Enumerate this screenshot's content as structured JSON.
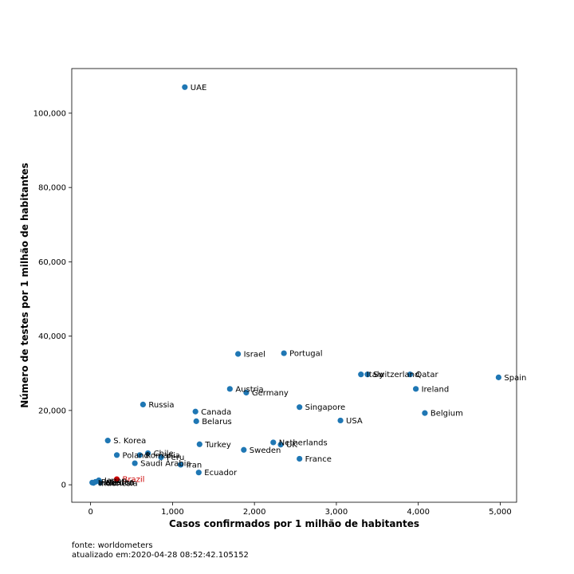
{
  "chart_data": {
    "type": "scatter",
    "xlabel": "Casos confirmados por 1 milhão de habitantes",
    "ylabel": "Número de testes por 1 milhão de habitantes",
    "xlim": [
      -230,
      5200
    ],
    "ylim": [
      -4700,
      112000
    ],
    "x_ticks": [
      0,
      1000,
      2000,
      3000,
      4000,
      5000
    ],
    "x_tick_labels": [
      "0",
      "1,000",
      "2,000",
      "3,000",
      "4,000",
      "5,000"
    ],
    "y_ticks": [
      0,
      20000,
      40000,
      60000,
      80000,
      100000
    ],
    "y_tick_labels": [
      "0",
      "20,000",
      "40,000",
      "60,000",
      "80,000",
      "100,000"
    ],
    "point_color": "#1f77b4",
    "highlight_color": "#cc0000",
    "grid": false,
    "points": [
      {
        "label": "UAE",
        "x": 1150,
        "y": 107000
      },
      {
        "label": "Israel",
        "x": 1800,
        "y": 35200
      },
      {
        "label": "Portugal",
        "x": 2360,
        "y": 35400
      },
      {
        "label": "Italy",
        "x": 3300,
        "y": 29700
      },
      {
        "label": "Switzerland",
        "x": 3380,
        "y": 29700
      },
      {
        "label": "Qatar",
        "x": 3900,
        "y": 29700
      },
      {
        "label": "Spain",
        "x": 4980,
        "y": 28900
      },
      {
        "label": "Ireland",
        "x": 3970,
        "y": 25800
      },
      {
        "label": "Austria",
        "x": 1700,
        "y": 25800
      },
      {
        "label": "Germany",
        "x": 1900,
        "y": 24800
      },
      {
        "label": "Russia",
        "x": 640,
        "y": 21600
      },
      {
        "label": "Singapore",
        "x": 2550,
        "y": 20900
      },
      {
        "label": "Canada",
        "x": 1280,
        "y": 19700
      },
      {
        "label": "Belgium",
        "x": 4080,
        "y": 19300
      },
      {
        "label": "Belarus",
        "x": 1290,
        "y": 17100
      },
      {
        "label": "USA",
        "x": 3050,
        "y": 17300
      },
      {
        "label": "S. Korea",
        "x": 210,
        "y": 11900
      },
      {
        "label": "Netherlands",
        "x": 2230,
        "y": 11400
      },
      {
        "label": "UK",
        "x": 2320,
        "y": 10800
      },
      {
        "label": "Turkey",
        "x": 1330,
        "y": 10900
      },
      {
        "label": "Sweden",
        "x": 1870,
        "y": 9400
      },
      {
        "label": "Chile",
        "x": 700,
        "y": 8500
      },
      {
        "label": "Poland",
        "x": 320,
        "y": 8000
      },
      {
        "label": "Romania",
        "x": 600,
        "y": 8000
      },
      {
        "label": "Peru",
        "x": 860,
        "y": 7400
      },
      {
        "label": "France",
        "x": 2550,
        "y": 7000
      },
      {
        "label": "Saudi Arabia",
        "x": 540,
        "y": 5800
      },
      {
        "label": "Iran",
        "x": 1100,
        "y": 5400
      },
      {
        "label": "Ecuador",
        "x": 1320,
        "y": 3300
      },
      {
        "label": "Brazil",
        "x": 320,
        "y": 1500,
        "highlight": true
      },
      {
        "label": "India",
        "x": 20,
        "y": 600
      },
      {
        "label": "Pakistan",
        "x": 60,
        "y": 800
      },
      {
        "label": "Indonesia",
        "x": 35,
        "y": 500
      },
      {
        "label": "Japan",
        "x": 100,
        "y": 1200
      },
      {
        "label": "Mexico",
        "x": 120,
        "y": 600
      }
    ]
  },
  "footer": {
    "source": "fonte: worldometers",
    "updated": "atualizado em:2020-04-28 08:52:42.105152"
  }
}
